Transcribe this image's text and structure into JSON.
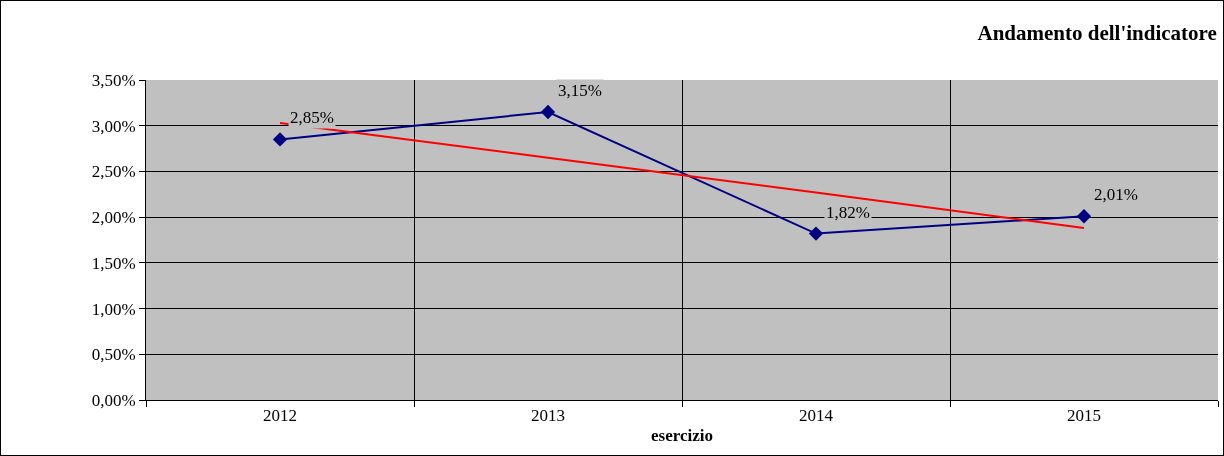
{
  "chart_data": {
    "type": "line",
    "title": "Andamento dell'indicatore",
    "xlabel": "esercizio",
    "categories": [
      "2012",
      "2013",
      "2014",
      "2015"
    ],
    "series": [
      {
        "color": "#000080",
        "values": [
          2.85,
          3.15,
          1.82,
          2.01
        ],
        "marker": "diamond",
        "value_labels": [
          "2,85%",
          "3,15%",
          "1,82%",
          "2,01%"
        ]
      },
      {
        "color": "#ff0000",
        "values": [
          3.03,
          2.65,
          2.27,
          1.88
        ],
        "marker": "none"
      }
    ],
    "ylim": [
      0,
      3.5
    ],
    "yticks": [
      {
        "value": 0,
        "label": "0,00%"
      },
      {
        "value": 0.5,
        "label": "0,50%"
      },
      {
        "value": 1,
        "label": "1,00%"
      },
      {
        "value": 1.5,
        "label": "1,50%"
      },
      {
        "value": 2,
        "label": "2,00%"
      },
      {
        "value": 2.5,
        "label": "2,50%"
      },
      {
        "value": 3,
        "label": "3,00%"
      },
      {
        "value": 3.5,
        "label": "3,50%"
      }
    ],
    "grid": true
  }
}
